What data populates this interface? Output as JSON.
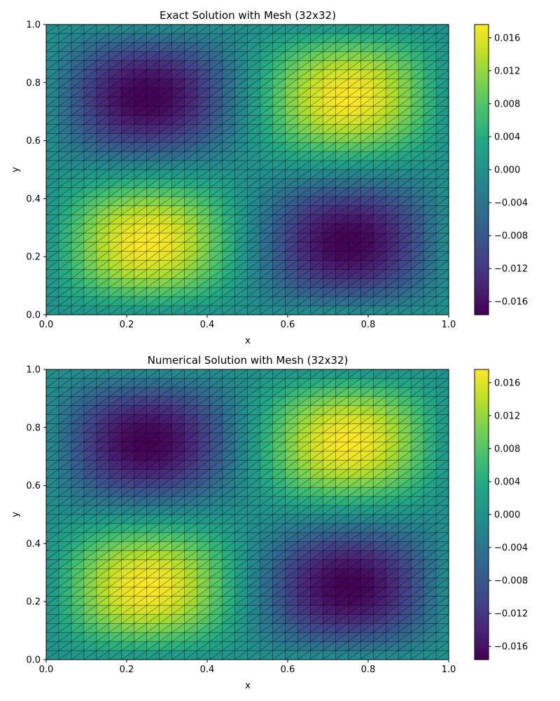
{
  "chart_data": [
    {
      "type": "heatmap",
      "title": "Exact Solution with Mesh (32x32)",
      "xlabel": "x",
      "ylabel": "y",
      "xlim": [
        0.0,
        1.0
      ],
      "ylim": [
        0.0,
        1.0
      ],
      "x_ticks": [
        "0.0",
        "0.2",
        "0.4",
        "0.6",
        "0.8",
        "1.0"
      ],
      "y_ticks": [
        "0.0",
        "0.2",
        "0.4",
        "0.6",
        "0.8",
        "1.0"
      ],
      "mesh": {
        "nx": 32,
        "ny": 32,
        "element": "triangle"
      },
      "field": {
        "formula": "sin(2πx)·sin(2πy)",
        "amplitude": 0.0176,
        "min": -0.0176,
        "max": 0.0176,
        "peaks": [
          {
            "x": 0.25,
            "y": 0.25,
            "value": 0.0176
          },
          {
            "x": 0.75,
            "y": 0.75,
            "value": 0.0176
          },
          {
            "x": 0.25,
            "y": 0.75,
            "value": -0.0176
          },
          {
            "x": 0.75,
            "y": 0.25,
            "value": -0.0176
          }
        ]
      },
      "colormap": "viridis",
      "colorbar": {
        "min": -0.0176,
        "max": 0.0176,
        "ticks": [
          "0.016",
          "0.012",
          "0.008",
          "0.004",
          "0.000",
          "−0.004",
          "−0.008",
          "−0.012",
          "−0.016"
        ],
        "tick_values": [
          0.016,
          0.012,
          0.008,
          0.004,
          0.0,
          -0.004,
          -0.008,
          -0.012,
          -0.016
        ]
      },
      "grid": false
    },
    {
      "type": "heatmap",
      "title": "Numerical Solution with Mesh (32x32)",
      "xlabel": "x",
      "ylabel": "y",
      "xlim": [
        0.0,
        1.0
      ],
      "ylim": [
        0.0,
        1.0
      ],
      "x_ticks": [
        "0.0",
        "0.2",
        "0.4",
        "0.6",
        "0.8",
        "1.0"
      ],
      "y_ticks": [
        "0.0",
        "0.2",
        "0.4",
        "0.6",
        "0.8",
        "1.0"
      ],
      "mesh": {
        "nx": 32,
        "ny": 32,
        "element": "triangle"
      },
      "field": {
        "formula": "sin(2πx)·sin(2πy)",
        "amplitude": 0.0176,
        "min": -0.0176,
        "max": 0.0176,
        "peaks": [
          {
            "x": 0.25,
            "y": 0.25,
            "value": 0.0176
          },
          {
            "x": 0.75,
            "y": 0.75,
            "value": 0.0176
          },
          {
            "x": 0.25,
            "y": 0.75,
            "value": -0.0176
          },
          {
            "x": 0.75,
            "y": 0.25,
            "value": -0.0176
          }
        ]
      },
      "colormap": "viridis",
      "colorbar": {
        "min": -0.0176,
        "max": 0.0176,
        "ticks": [
          "0.016",
          "0.012",
          "0.008",
          "0.004",
          "0.000",
          "−0.004",
          "−0.008",
          "−0.012",
          "−0.016"
        ],
        "tick_values": [
          0.016,
          0.012,
          0.008,
          0.004,
          0.0,
          -0.004,
          -0.008,
          -0.012,
          -0.016
        ]
      },
      "grid": false
    }
  ]
}
